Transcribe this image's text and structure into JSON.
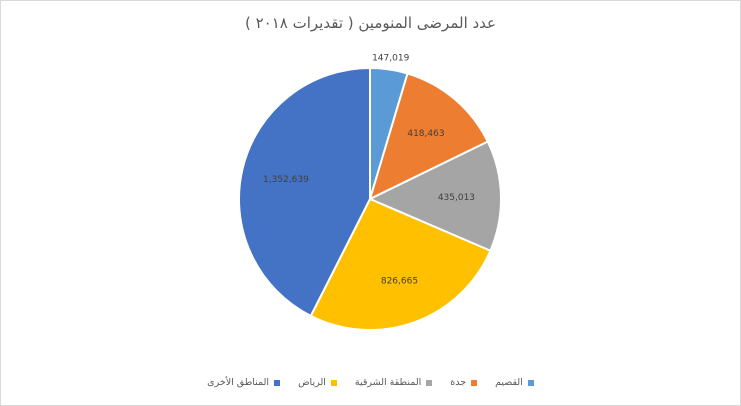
{
  "chart_data": {
    "type": "pie",
    "title": "عدد المرضى المنومين ( تقديرات ٢٠١٨ )",
    "categories": [
      "القصيم",
      "جدة",
      "المنطقة الشرقية",
      "الرياض",
      "المناطق الأخرى"
    ],
    "values": [
      147019,
      418463,
      435013,
      826665,
      1352639
    ],
    "data_labels": [
      "147,019",
      "418,463",
      "435,013",
      "826,665",
      "1,352,639"
    ],
    "colors": [
      "#5b9bd5",
      "#ed7d31",
      "#a5a5a5",
      "#ffc000",
      "#4472c4"
    ],
    "legend_position": "bottom"
  }
}
